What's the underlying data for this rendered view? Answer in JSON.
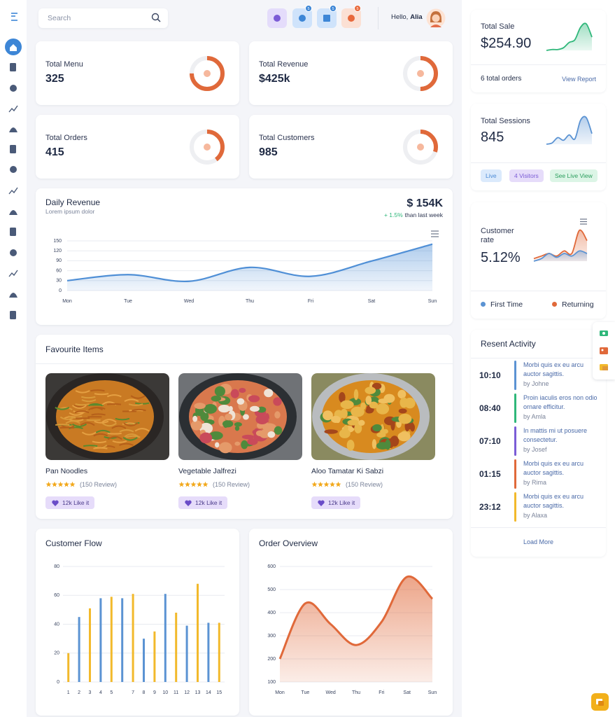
{
  "search": {
    "placeholder": "Search"
  },
  "header": {
    "badges": [
      "5",
      "5",
      "5"
    ],
    "greeting": "Hello,",
    "user": "Alia"
  },
  "stats": [
    {
      "label": "Total Menu",
      "value": "325",
      "progress": 75
    },
    {
      "label": "Total Revenue",
      "value": "$425k",
      "progress": 50
    },
    {
      "label": "Total Orders",
      "value": "415",
      "progress": 40
    },
    {
      "label": "Total Customers",
      "value": "985",
      "progress": 30
    }
  ],
  "daily_revenue": {
    "type": "line",
    "title": "Daily Revenue",
    "subtitle": "Lorem ipsum dolor",
    "total": "$ 154K",
    "change": "+ 1.5%",
    "change_note": "than last week",
    "categories": [
      "Mon",
      "Tue",
      "Wed",
      "Thu",
      "Fri",
      "Sat",
      "Sun"
    ],
    "values": [
      30,
      48,
      28,
      70,
      43,
      89,
      140
    ],
    "ylim": [
      0,
      150
    ],
    "yticks": [
      0,
      30,
      60,
      90,
      120,
      150
    ],
    "color": "#4f8fd6"
  },
  "favourites": {
    "title": "Favourite Items",
    "items": [
      {
        "name": "Pan Noodles",
        "reviews": "(150 Review)",
        "likes": "12k Like it"
      },
      {
        "name": "Vegetable Jalfrezi",
        "reviews": "(150 Review)",
        "likes": "12k Like it"
      },
      {
        "name": "Aloo Tamatar Ki Sabzi",
        "reviews": "(150 Review)",
        "likes": "12k Like it"
      }
    ]
  },
  "customer_flow": {
    "type": "bar",
    "title": "Customer Flow",
    "categories": [
      "1",
      "2",
      "3",
      "4",
      "5",
      null,
      "7",
      "8",
      "9",
      "10",
      "11",
      "12",
      "13",
      "14",
      "15"
    ],
    "values": [
      20,
      45,
      51,
      58,
      59,
      58,
      61,
      30,
      35,
      61,
      48,
      39,
      68,
      41,
      41
    ],
    "colors": [
      "#f2b92b",
      "#5b93d3",
      "#f2b92b",
      "#5b93d3",
      "#f2b92b",
      "#5b93d3",
      "#f2b92b",
      "#5b93d3",
      "#f2b92b",
      "#5b93d3",
      "#f2b92b",
      "#5b93d3",
      "#f2b92b",
      "#5b93d3",
      "#f2b92b"
    ],
    "ylim": [
      0,
      80
    ],
    "yticks": [
      0,
      20,
      40,
      60,
      80
    ]
  },
  "order_overview": {
    "type": "area",
    "title": "Order Overview",
    "categories": [
      "Mon",
      "Tue",
      "Wed",
      "Thu",
      "Fri",
      "Sat",
      "Sun"
    ],
    "values": [
      200,
      440,
      350,
      260,
      360,
      555,
      460
    ],
    "ylim": [
      100,
      600
    ],
    "yticks": [
      100,
      200,
      300,
      400,
      500,
      600
    ],
    "color": "#e0693a"
  },
  "total_sale": {
    "label": "Total Sale",
    "value": "$254.90",
    "trend": [
      10,
      11,
      11,
      13,
      19,
      22,
      36,
      40,
      25
    ],
    "color": "#2fb77a",
    "orders": "6 total orders",
    "link": "View Report"
  },
  "sessions": {
    "label": "Total Sessions",
    "value": "845",
    "trend": [
      10,
      11,
      15,
      13,
      17,
      14,
      28,
      30,
      18
    ],
    "color": "#5b93d3",
    "chips": [
      "Live",
      "4 Visitors",
      "See Live View"
    ]
  },
  "customer_rate": {
    "label": "Customer rate",
    "value": "5.12%",
    "series": [
      {
        "name": "Returning",
        "color": "#e0693a",
        "values": [
          8,
          10,
          12,
          10,
          14,
          12,
          30,
          22
        ]
      },
      {
        "name": "First Time",
        "color": "#5b93d3",
        "values": [
          6,
          8,
          12,
          9,
          12,
          10,
          14,
          12
        ]
      }
    ],
    "legend": [
      "First Time",
      "Returning"
    ]
  },
  "activity": {
    "title": "Resent Activity",
    "items": [
      {
        "time": "10:10",
        "text": "Morbi quis ex eu arcu auctor sagittis.",
        "author": "by Johne",
        "color": "#5b93d3"
      },
      {
        "time": "08:40",
        "text": "Proin iaculis eros non odio ornare efficitur.",
        "author": "by Amla",
        "color": "#2fb77a"
      },
      {
        "time": "07:10",
        "text": "In mattis mi ut posuere consectetur.",
        "author": "by Josef",
        "color": "#7b5cd6"
      },
      {
        "time": "01:15",
        "text": "Morbi quis ex eu arcu auctor sagittis.",
        "author": "by Rima",
        "color": "#e0693a"
      },
      {
        "time": "23:12",
        "text": "Morbi quis ex eu arcu auctor sagittis.",
        "author": "by Alaxa",
        "color": "#f2b92b"
      }
    ],
    "more": "Load More"
  }
}
